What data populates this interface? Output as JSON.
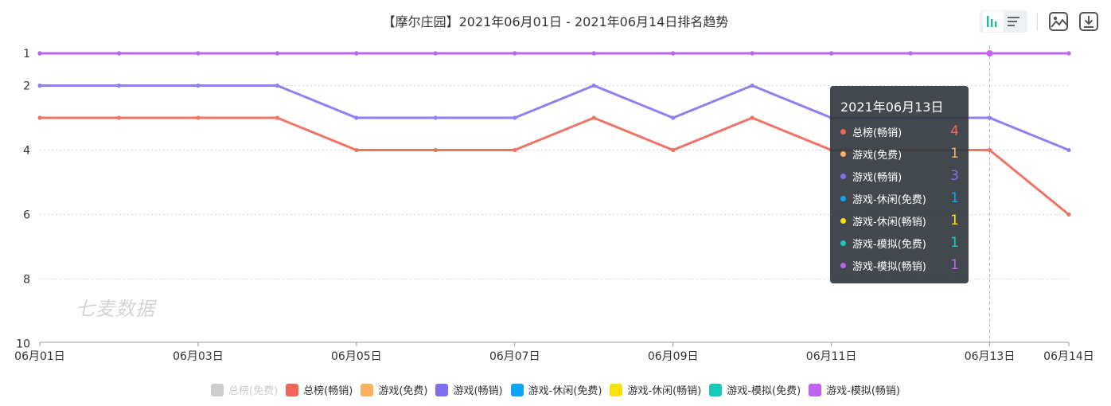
{
  "title": "【摩尔庄园】2021年06月01日 - 2021年06月14日排名趋势",
  "watermark": "七麦数据",
  "toolbar": {
    "bar_icon": "bar-chart-icon",
    "list_icon": "list-icon",
    "image_icon": "image-download-icon",
    "download_icon": "download-icon"
  },
  "tooltip": {
    "date": "2021年06月13日",
    "rows": [
      {
        "name": "总榜(畅销)",
        "value": "4",
        "color": "#f2665a"
      },
      {
        "name": "游戏(免费)",
        "value": "1",
        "color": "#fbb15f"
      },
      {
        "name": "游戏(畅销)",
        "value": "3",
        "color": "#7f6eee"
      },
      {
        "name": "游戏-休闲(免费)",
        "value": "1",
        "color": "#0ba4f6"
      },
      {
        "name": "游戏-休闲(畅销)",
        "value": "1",
        "color": "#f9e20a"
      },
      {
        "name": "游戏-模拟(免费)",
        "value": "1",
        "color": "#19c8b6"
      },
      {
        "name": "游戏-模拟(畅销)",
        "value": "1",
        "color": "#c063ee"
      }
    ]
  },
  "legend": [
    {
      "name": "总榜(免费)",
      "color": "#cccccc",
      "disabled": true
    },
    {
      "name": "总榜(畅销)",
      "color": "#f2665a",
      "disabled": false
    },
    {
      "name": "游戏(免费)",
      "color": "#fbb15f",
      "disabled": false
    },
    {
      "name": "游戏(畅销)",
      "color": "#7f6eee",
      "disabled": false
    },
    {
      "name": "游戏-休闲(免费)",
      "color": "#0ba4f6",
      "disabled": false
    },
    {
      "name": "游戏-休闲(畅销)",
      "color": "#f9e20a",
      "disabled": false
    },
    {
      "name": "游戏-模拟(免费)",
      "color": "#19c8b6",
      "disabled": false
    },
    {
      "name": "游戏-模拟(畅销)",
      "color": "#c063ee",
      "disabled": false
    }
  ],
  "chart_data": {
    "type": "line",
    "title": "【摩尔庄园】2021年06月01日 - 2021年06月14日排名趋势",
    "x": [
      "06月01日",
      "06月02日",
      "06月03日",
      "06月04日",
      "06月05日",
      "06月06日",
      "06月07日",
      "06月08日",
      "06月09日",
      "06月10日",
      "06月11日",
      "06月12日",
      "06月13日",
      "06月14日"
    ],
    "x_tick_labels": [
      "06月01日",
      "06月03日",
      "06月05日",
      "06月07日",
      "06月09日",
      "06月11日",
      "06月13日",
      "06月14日"
    ],
    "y_tick_labels": [
      "1",
      "2",
      "4",
      "6",
      "8",
      "10"
    ],
    "ylim": [
      1,
      10
    ],
    "y_inverted": true,
    "grid": true,
    "legend_position": "bottom",
    "highlight_x": "06月13日",
    "series": [
      {
        "name": "总榜(畅销)",
        "color": "#f07368",
        "values": [
          3,
          3,
          3,
          3,
          4,
          4,
          4,
          3,
          4,
          3,
          4,
          4,
          4,
          6
        ]
      },
      {
        "name": "游戏(畅销)",
        "color": "#8f7ff0",
        "values": [
          2,
          2,
          2,
          2,
          3,
          3,
          3,
          2,
          3,
          2,
          3,
          3,
          3,
          4
        ]
      },
      {
        "name": "游戏(免费)",
        "color": "#fbb15f",
        "values": [
          1,
          1,
          1,
          1,
          1,
          1,
          1,
          1,
          1,
          1,
          1,
          1,
          1,
          1
        ]
      },
      {
        "name": "游戏-休闲(免费)",
        "color": "#0ba4f6",
        "values": [
          1,
          1,
          1,
          1,
          1,
          1,
          1,
          1,
          1,
          1,
          1,
          1,
          1,
          1
        ]
      },
      {
        "name": "游戏-休闲(畅销)",
        "color": "#f9e20a",
        "values": [
          1,
          1,
          1,
          1,
          1,
          1,
          1,
          1,
          1,
          1,
          1,
          1,
          1,
          1
        ]
      },
      {
        "name": "游戏-模拟(免费)",
        "color": "#2ed3c6",
        "values": [
          1,
          1,
          1,
          1,
          1,
          1,
          1,
          1,
          1,
          1,
          1,
          1,
          1,
          1
        ]
      },
      {
        "name": "游戏-模拟(畅销)",
        "color": "#c063ee",
        "values": [
          1,
          1,
          1,
          1,
          1,
          1,
          1,
          1,
          1,
          1,
          1,
          1,
          1,
          1
        ]
      }
    ]
  }
}
